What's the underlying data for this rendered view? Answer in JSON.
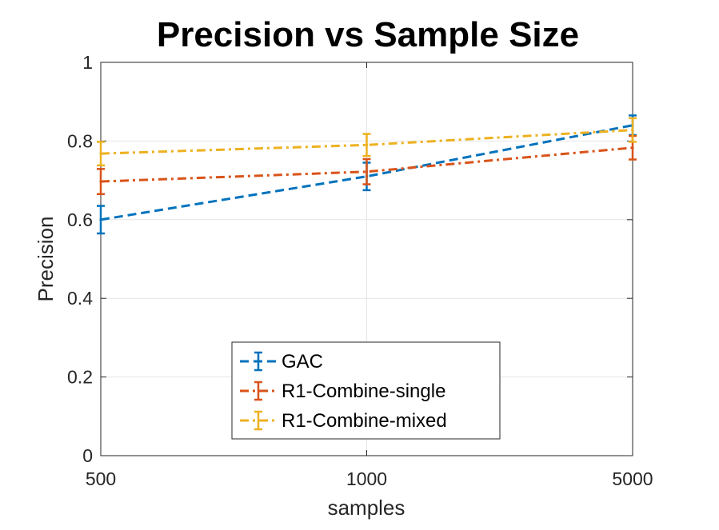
{
  "chart_data": {
    "type": "line",
    "title": "Precision vs Sample Size",
    "xlabel": "samples",
    "ylabel": "Precision",
    "categories": [
      "500",
      "1000",
      "5000"
    ],
    "ylim": [
      0,
      1
    ],
    "yticks": [
      0,
      0.2,
      0.4,
      0.6,
      0.8,
      1
    ],
    "ytick_labels": [
      "0",
      "0.2",
      "0.4",
      "0.6",
      "0.8",
      "1"
    ],
    "grid": true,
    "legend_position": "bottom-center",
    "series": [
      {
        "name": "GAC",
        "values": [
          0.6,
          0.71,
          0.84
        ],
        "error": [
          0.035,
          0.035,
          0.025
        ],
        "color": "#0072BD",
        "line_style": "dashed"
      },
      {
        "name": "R1-Combine-single",
        "values": [
          0.697,
          0.722,
          0.783
        ],
        "error": [
          0.032,
          0.032,
          0.03
        ],
        "color": "#D95319",
        "line_style": "dashdot"
      },
      {
        "name": "R1-Combine-mixed",
        "values": [
          0.768,
          0.79,
          0.828
        ],
        "error": [
          0.03,
          0.028,
          0.03
        ],
        "color": "#EDB120",
        "line_style": "dashdot"
      }
    ]
  }
}
